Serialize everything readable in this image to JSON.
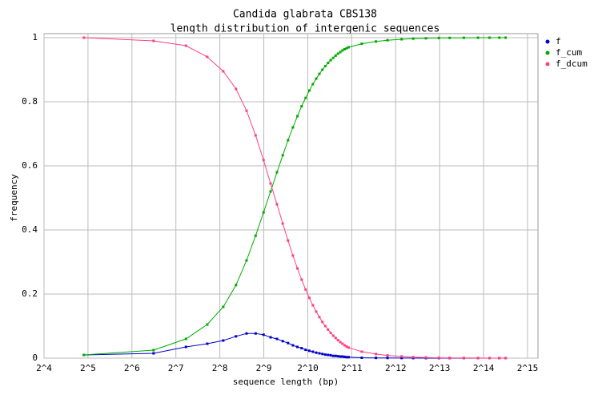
{
  "chart_data": {
    "type": "line",
    "title": "Candida glabrata CBS138",
    "subtitle": "length distribution of intergenic sequences",
    "x_label": "sequence length (bp)",
    "y_label": "frequency",
    "x": [
      30,
      90,
      150,
      210,
      270,
      330,
      390,
      450,
      510,
      570,
      630,
      690,
      750,
      810,
      870,
      930,
      990,
      1050,
      1110,
      1170,
      1230,
      1290,
      1350,
      1410,
      1470,
      1530,
      1590,
      1650,
      1710,
      1770,
      1830,
      1890,
      1950,
      2400,
      3000,
      3600,
      4500,
      5400,
      6600,
      8100,
      9600,
      12000,
      15000,
      18000,
      21000,
      23190
    ],
    "series": [
      {
        "name": "f",
        "color": "#0000cc",
        "values": [
          0.01,
          0.015,
          0.035,
          0.045,
          0.055,
          0.068,
          0.077,
          0.077,
          0.073,
          0.065,
          0.06,
          0.053,
          0.047,
          0.04,
          0.035,
          0.031,
          0.026,
          0.023,
          0.02,
          0.017,
          0.015,
          0.013,
          0.011,
          0.01,
          0.009,
          0.007,
          0.007,
          0.006,
          0.005,
          0.005,
          0.004,
          0.003,
          0.003,
          0.0012,
          0.0008,
          0.0005,
          0.0003,
          0.0002,
          0.0001,
          0.0001,
          0.0001,
          0.0001,
          0.0001,
          0.0001,
          0.0001,
          0.0001
        ]
      },
      {
        "name": "f_cum",
        "color": "#00aa00",
        "values": [
          0.01,
          0.025,
          0.06,
          0.105,
          0.16,
          0.228,
          0.305,
          0.382,
          0.455,
          0.52,
          0.58,
          0.633,
          0.68,
          0.72,
          0.755,
          0.786,
          0.812,
          0.835,
          0.855,
          0.872,
          0.887,
          0.9,
          0.911,
          0.921,
          0.93,
          0.937,
          0.944,
          0.95,
          0.955,
          0.96,
          0.964,
          0.967,
          0.97,
          0.981,
          0.988,
          0.992,
          0.995,
          0.997,
          0.998,
          0.999,
          0.9993,
          0.9996,
          0.9998,
          0.9999,
          0.9999,
          1
        ]
      },
      {
        "name": "f_dcum",
        "color": "#ff4080",
        "values": [
          1,
          0.99,
          0.975,
          0.94,
          0.895,
          0.84,
          0.772,
          0.695,
          0.618,
          0.545,
          0.48,
          0.42,
          0.367,
          0.32,
          0.28,
          0.245,
          0.214,
          0.188,
          0.165,
          0.145,
          0.128,
          0.113,
          0.1,
          0.089,
          0.079,
          0.07,
          0.063,
          0.056,
          0.05,
          0.045,
          0.04,
          0.036,
          0.033,
          0.0202,
          0.0128,
          0.0085,
          0.0053,
          0.0032,
          0.0021,
          0.0011,
          0.0007,
          0.0004,
          0.0002,
          0.0001,
          0.0001,
          0.0001
        ]
      }
    ],
    "xlim": [
      16,
      32768
    ],
    "log_x": true,
    "xticks": [
      {
        "value": 16,
        "label": "2^4"
      },
      {
        "value": 32,
        "label": "2^5"
      },
      {
        "value": 64,
        "label": "2^6"
      },
      {
        "value": 128,
        "label": "2^7"
      },
      {
        "value": 256,
        "label": "2^8"
      },
      {
        "value": 512,
        "label": "2^9"
      },
      {
        "value": 1024,
        "label": "2^10"
      },
      {
        "value": 2048,
        "label": "2^11"
      },
      {
        "value": 4096,
        "label": "2^12"
      },
      {
        "value": 8192,
        "label": "2^13"
      },
      {
        "value": 16384,
        "label": "2^14"
      },
      {
        "value": 32768,
        "label": "2^15"
      }
    ],
    "ylim": [
      0,
      1
    ],
    "yticks": [
      0,
      0.2,
      0.4,
      0.6,
      0.8,
      1
    ],
    "grid": true,
    "legend": "right"
  }
}
